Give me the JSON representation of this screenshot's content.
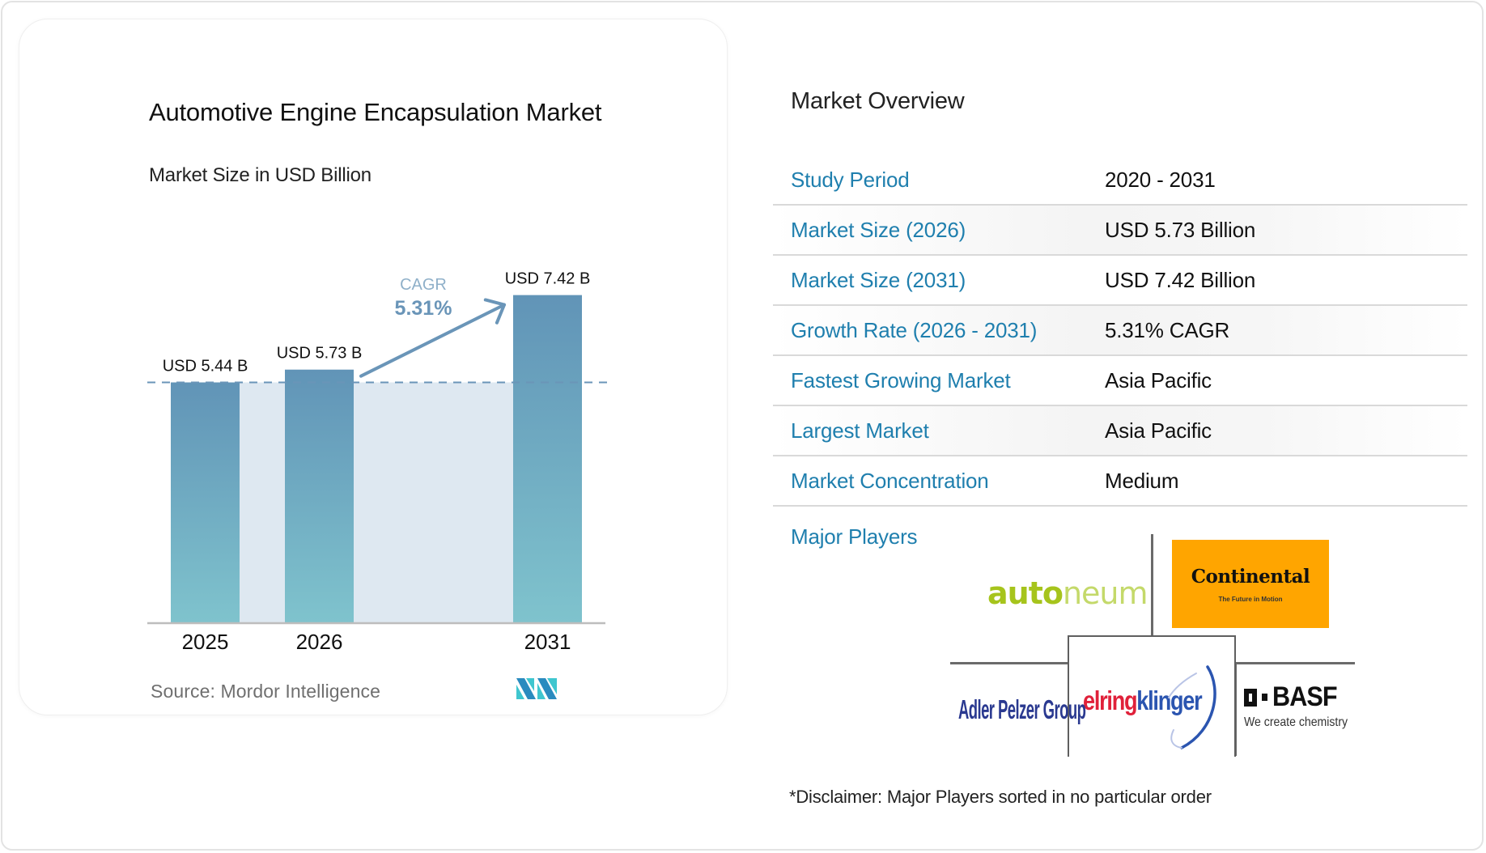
{
  "chart_card": {
    "title": "Automotive Engine Encapsulation Market",
    "subtitle": "Market Size in USD Billion",
    "source": "Source:  Mordor Intelligence",
    "logo": "mordor-intelligence-logo"
  },
  "chart_data": {
    "type": "bar",
    "title": "Automotive Engine Encapsulation Market",
    "subtitle": "Market Size in USD Billion",
    "categories": [
      "2025",
      "2026",
      "2031"
    ],
    "values": [
      5.44,
      5.73,
      7.42
    ],
    "value_labels": [
      "USD 5.44 B",
      "USD 5.73 B",
      "USD 7.42 B"
    ],
    "unit": "USD Billion",
    "baseline_reference": 5.44,
    "annotation": {
      "label": "CAGR",
      "value": "5.31%"
    },
    "xlabel": "",
    "ylabel": "",
    "grid": false,
    "legend": "none",
    "colors": {
      "bar_top": "#6194b7",
      "bar_bottom": "#7fc3cd",
      "shade": "#dee8f1",
      "arrow": "#6a95b8",
      "dash": "#6a95b8"
    }
  },
  "overview": {
    "title": "Market Overview",
    "rows": [
      {
        "label": "Study Period",
        "value": "2020 - 2031"
      },
      {
        "label": "Market Size (2026)",
        "value": "USD 5.73 Billion"
      },
      {
        "label": "Market Size (2031)",
        "value": "USD 7.42 Billion"
      },
      {
        "label": "Growth Rate (2026 - 2031)",
        "value": "5.31% CAGR"
      },
      {
        "label": "Fastest Growing Market",
        "value": "Asia Pacific"
      },
      {
        "label": "Largest Market",
        "value": "Asia Pacific"
      },
      {
        "label": "Market Concentration",
        "value": "Medium"
      }
    ],
    "major_players_label": "Major Players",
    "players": {
      "autoneum": {
        "bold": "auto",
        "light": "neum"
      },
      "continental": {
        "name": "Continental",
        "tagline": "The Future in Motion"
      },
      "elringklinger": {
        "part1": "elring",
        "part2": "klinger"
      },
      "adler": {
        "name": "Adler Pelzer Group"
      },
      "basf": {
        "name": "BASF",
        "tagline": "We create chemistry"
      }
    },
    "disclaimer": "*Disclaimer: Major Players sorted in no particular order"
  },
  "colors": {
    "label_blue": "#1f7fae",
    "continental_orange": "#ffa500",
    "autoneum_green": "#a6c41c",
    "elring_red": "#e0213a",
    "klinger_blue": "#2b55b0",
    "adler_navy": "#2a3990"
  }
}
